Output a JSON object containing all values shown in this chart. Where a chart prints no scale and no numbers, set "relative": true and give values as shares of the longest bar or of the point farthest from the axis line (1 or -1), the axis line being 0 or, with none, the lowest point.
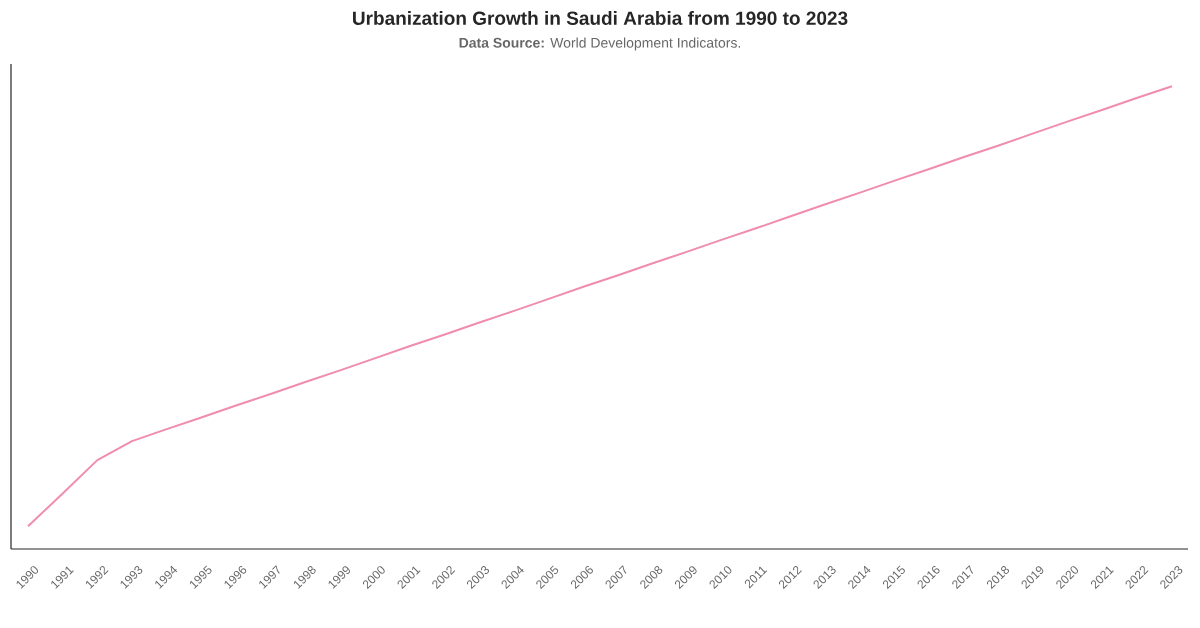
{
  "chart_data": {
    "type": "line",
    "title": "Urbanization Growth in Saudi Arabia from 1990 to 2023",
    "subtitle": "**Data Source:** World Development Indicators.",
    "relative": true,
    "categories": [
      "1990",
      "1991",
      "1992",
      "1993",
      "1994",
      "1995",
      "1996",
      "1997",
      "1998",
      "1999",
      "2000",
      "2001",
      "2002",
      "2003",
      "2004",
      "2005",
      "2006",
      "2007",
      "2008",
      "2009",
      "2010",
      "2011",
      "2012",
      "2013",
      "2014",
      "2015",
      "2016",
      "2017",
      "2018",
      "2019",
      "2020",
      "2021",
      "2022",
      "2023"
    ],
    "series": [
      {
        "color": "#f08cb0",
        "values": [
          0.049,
          0.12,
          0.192,
          0.233,
          0.259,
          0.284,
          0.31,
          0.335,
          0.361,
          0.386,
          0.412,
          0.438,
          0.463,
          0.489,
          0.514,
          0.54,
          0.566,
          0.591,
          0.617,
          0.642,
          0.668,
          0.693,
          0.719,
          0.745,
          0.77,
          0.796,
          0.821,
          0.847,
          0.872,
          0.898,
          0.924,
          0.949,
          0.975,
          1
        ]
      }
    ],
    "marker": "none",
    "line_style": "solid"
  }
}
